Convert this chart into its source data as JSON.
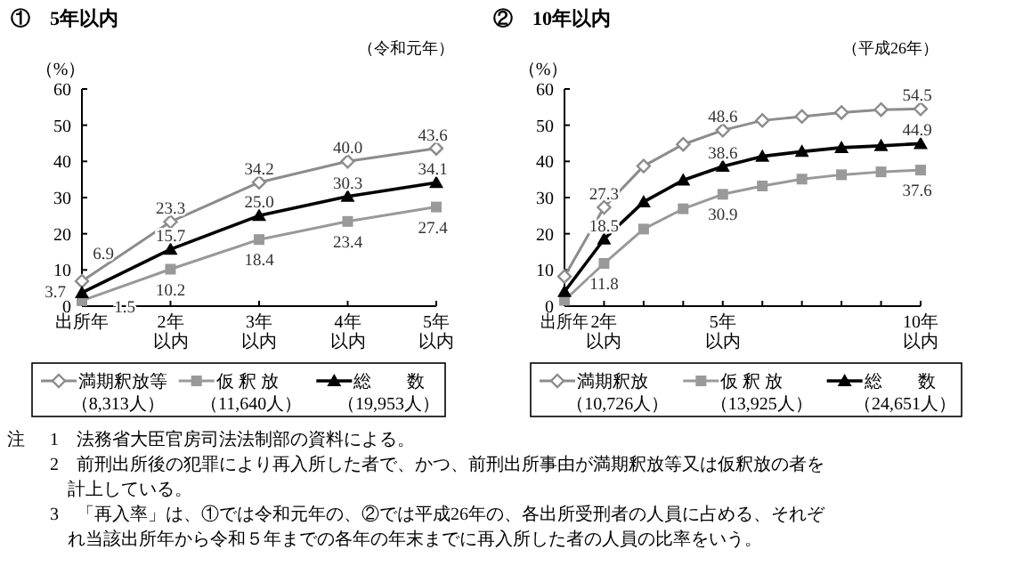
{
  "chart_data": [
    {
      "type": "line",
      "title": "①　5年以内",
      "subtitle": "（令和元年）",
      "ylabel": "（%）",
      "categories": [
        "出所年",
        "2年以内",
        "3年以内",
        "4年以内",
        "5年以内"
      ],
      "ylim": [
        0,
        60
      ],
      "yticks": [
        0,
        10,
        20,
        30,
        40,
        50,
        60
      ],
      "legend": "bottom",
      "series": [
        {
          "name": "満期釈放等（8,313人）",
          "color": "#8c8c8c",
          "marker": "diamond",
          "values": [
            6.9,
            23.3,
            34.2,
            40.0,
            43.6
          ],
          "value_labels": [
            "6.9",
            "23.3",
            "34.2",
            "40.0",
            "43.6"
          ]
        },
        {
          "name": "仮 釈 放（11,640人）",
          "color": "#999999",
          "marker": "square",
          "values": [
            1.5,
            10.2,
            18.4,
            23.4,
            27.4
          ],
          "value_labels": [
            "1.5",
            "10.2",
            "18.4",
            "23.4",
            "27.4"
          ]
        },
        {
          "name": "総　　数（19,953人）",
          "color": "#000000",
          "marker": "triangle",
          "values": [
            3.7,
            15.7,
            25.0,
            30.3,
            34.1
          ],
          "value_labels": [
            "3.7",
            "15.7",
            "25.0",
            "30.3",
            "34.1"
          ]
        }
      ]
    },
    {
      "type": "line",
      "title": "②　10年以内",
      "subtitle": "（平成26年）",
      "ylabel": "（%）",
      "categories": [
        "出所年",
        "2年以内",
        null,
        null,
        "5年以内",
        null,
        null,
        null,
        null,
        "10年以内"
      ],
      "ylim": [
        0,
        60
      ],
      "yticks": [
        0,
        10,
        20,
        30,
        40,
        50,
        60
      ],
      "legend": "bottom",
      "series": [
        {
          "name": "満期釈放（10,726人）",
          "color": "#8c8c8c",
          "marker": "diamond",
          "values": [
            8.2,
            27.3,
            38.7,
            44.7,
            48.6,
            51.3,
            52.4,
            53.5,
            54.3,
            54.5
          ],
          "value_labels": [
            null,
            "27.3",
            null,
            null,
            "48.6",
            null,
            null,
            null,
            null,
            "54.5"
          ]
        },
        {
          "name": "仮 釈 放（13,925人）",
          "color": "#999999",
          "marker": "square",
          "values": [
            1.6,
            11.8,
            21.3,
            26.9,
            30.9,
            33.2,
            35.1,
            36.3,
            37.1,
            37.6
          ],
          "value_labels": [
            null,
            "11.8",
            null,
            null,
            "30.9",
            null,
            null,
            null,
            null,
            "37.6"
          ]
        },
        {
          "name": "総　　数（24,651人）",
          "color": "#000000",
          "marker": "triangle",
          "values": [
            4.0,
            18.5,
            28.8,
            34.8,
            38.6,
            41.4,
            42.7,
            43.8,
            44.3,
            44.9
          ],
          "value_labels": [
            null,
            "18.5",
            null,
            null,
            "38.6",
            null,
            null,
            null,
            null,
            "44.9"
          ]
        }
      ],
      "annotations": [
        "注",
        "1　法務省大臣官房司法法制部の資料による。",
        "2　前刑出所後の犯罪により再入所した者で、かつ、前刑出所事由が満期釈放等又は仮釈放の者を計上している。",
        "3　「再入率」は、①では令和元年の、②では平成26年の、各出所受刑者の人員に占める、それぞれ当該出所年から令和５年までの各年の年末までに再入所した者の人員の比率をいう。"
      ]
    }
  ]
}
